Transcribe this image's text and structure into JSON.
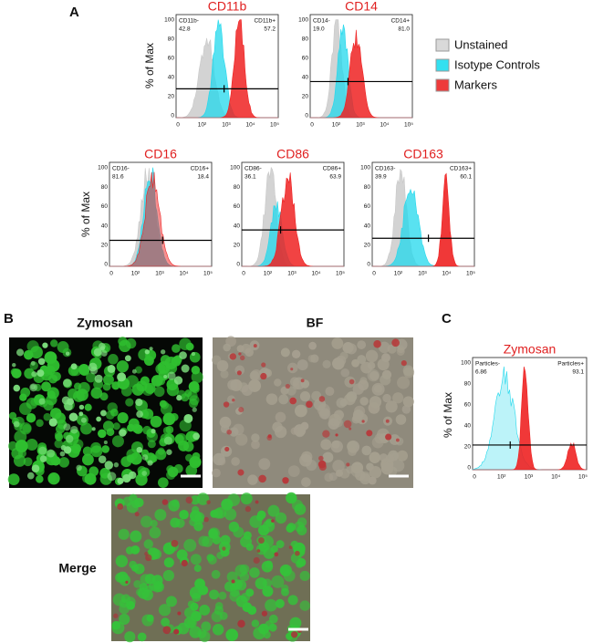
{
  "panel_a": {
    "label": "A",
    "y_label": "% of Max",
    "legend": [
      "Unstained",
      "Isotype Controls",
      "Markers"
    ],
    "histograms": [
      {
        "title": "CD11b",
        "gate_left": "CD11b-",
        "value_left": "42.8",
        "gate_right": "CD11b+",
        "value_right": "57.2"
      },
      {
        "title": "CD14",
        "gate_left": "CD14-",
        "value_left": "19.0",
        "gate_right": "CD14+",
        "value_right": "81.0"
      },
      {
        "title": "CD16",
        "gate_left": "CD16-",
        "value_left": "81.6",
        "gate_right": "CD16+",
        "value_right": "18.4"
      },
      {
        "title": "CD86",
        "gate_left": "CD86-",
        "value_left": "36.1",
        "gate_right": "CD86+",
        "value_right": "63.9"
      },
      {
        "title": "CD163",
        "gate_left": "CD163-",
        "value_left": "39.9",
        "gate_right": "CD163+",
        "value_right": "60.1"
      }
    ]
  },
  "axis": {
    "yticks": [
      "0",
      "20",
      "40",
      "60",
      "80",
      "100"
    ],
    "xticks": [
      "0",
      "10²",
      "10³",
      "10⁴",
      "10⁵"
    ]
  },
  "panel_b": {
    "label": "B",
    "images": [
      "Zymosan",
      "BF",
      "Merge"
    ]
  },
  "panel_c": {
    "label": "C",
    "title": "Zymosan",
    "y_label": "% of Max",
    "gate_left": "Particles-",
    "value_left": "6.86",
    "gate_right": "Particles+",
    "value_right": "93.1"
  }
}
